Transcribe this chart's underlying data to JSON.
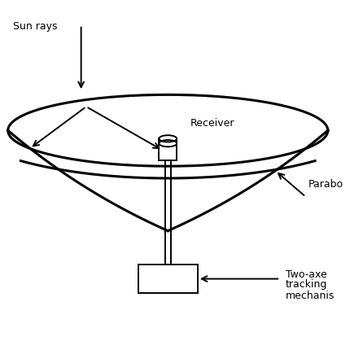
{
  "bg_color": "#ffffff",
  "line_color": "#000000",
  "labels": {
    "sun_rays": "Sun rays",
    "receiver": "Receiver",
    "parabola": "Parabo",
    "tracking": [
      "Two-axe",
      "tracking",
      "mechanis"
    ]
  },
  "figsize": [
    4.46,
    4.46
  ],
  "dpi": 100
}
